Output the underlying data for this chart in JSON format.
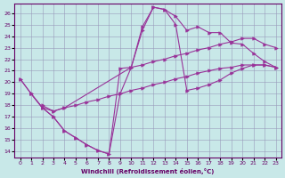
{
  "xlabel": "Windchill (Refroidissement éolien,°C)",
  "bg_color": "#c8e8e8",
  "grid_color": "#9999bb",
  "line_color": "#993399",
  "xlim": [
    -0.5,
    23.5
  ],
  "ylim": [
    13.5,
    26.8
  ],
  "xticks": [
    0,
    1,
    2,
    3,
    4,
    5,
    6,
    7,
    8,
    9,
    10,
    11,
    12,
    13,
    14,
    15,
    16,
    17,
    18,
    19,
    20,
    21,
    22,
    23
  ],
  "yticks": [
    14,
    15,
    16,
    17,
    18,
    19,
    20,
    21,
    22,
    23,
    24,
    25,
    26
  ],
  "lines": [
    {
      "x": [
        0,
        1,
        2,
        3,
        4,
        5,
        6,
        7,
        8,
        9,
        10,
        11,
        12,
        13,
        14,
        15,
        16,
        17,
        18,
        19,
        20,
        21,
        22,
        23
      ],
      "y": [
        20.3,
        19.0,
        17.8,
        17.0,
        15.8,
        15.2,
        14.6,
        14.1,
        13.8,
        21.2,
        21.3,
        24.5,
        26.5,
        26.3,
        25.7,
        24.5,
        24.8,
        24.3,
        24.3,
        23.4,
        23.3,
        22.5,
        21.8,
        21.3
      ]
    },
    {
      "x": [
        0,
        1,
        2,
        3,
        4,
        5,
        6,
        7,
        8,
        9,
        10,
        11,
        12,
        13,
        14,
        15,
        16,
        17,
        18,
        19,
        20,
        21,
        22,
        23
      ],
      "y": [
        20.3,
        19.0,
        17.8,
        17.0,
        15.8,
        15.2,
        14.6,
        14.1,
        13.8,
        19.0,
        21.3,
        24.8,
        26.5,
        26.3,
        25.0,
        19.3,
        19.5,
        19.8,
        20.2,
        20.8,
        21.2,
        21.5,
        21.5,
        21.3
      ]
    },
    {
      "x": [
        1,
        2,
        3,
        4,
        5,
        6,
        7,
        8,
        9,
        10,
        11,
        12,
        13,
        14,
        15,
        16,
        17,
        18,
        19,
        20,
        21,
        22,
        23
      ],
      "y": [
        19.0,
        17.8,
        17.5,
        17.8,
        18.0,
        18.3,
        18.5,
        18.8,
        19.0,
        19.3,
        19.5,
        19.8,
        20.0,
        20.3,
        20.5,
        20.8,
        21.0,
        21.2,
        21.3,
        21.5,
        21.5,
        21.5,
        21.3
      ]
    },
    {
      "x": [
        2,
        3,
        4,
        10,
        11,
        12,
        13,
        14,
        15,
        16,
        17,
        18,
        19,
        20,
        21,
        22,
        23
      ],
      "y": [
        18.0,
        17.5,
        17.8,
        21.3,
        21.5,
        21.8,
        22.0,
        22.3,
        22.5,
        22.8,
        23.0,
        23.3,
        23.5,
        23.8,
        23.8,
        23.3,
        23.0
      ]
    }
  ]
}
